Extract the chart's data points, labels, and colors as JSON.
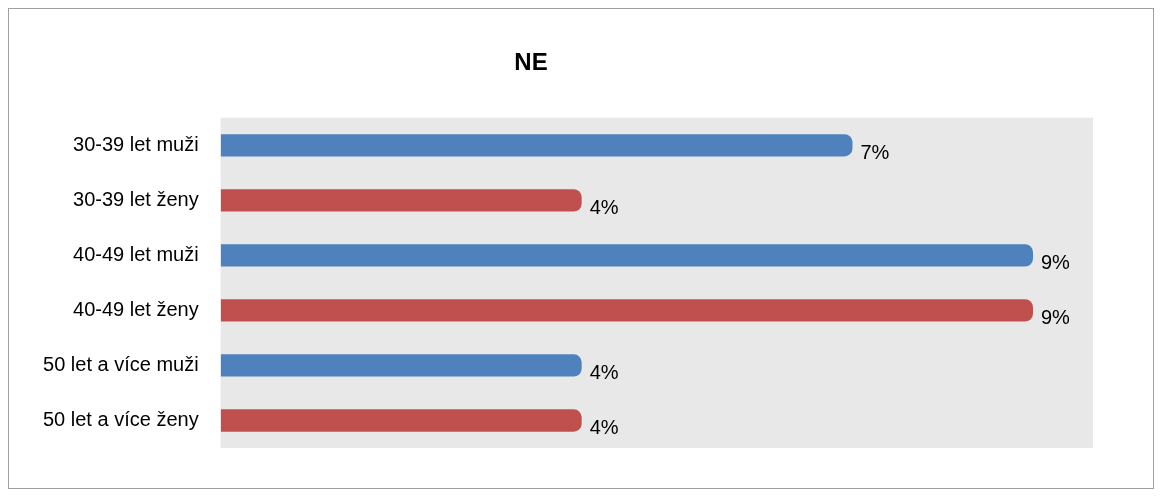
{
  "chart_data": {
    "type": "bar",
    "title": "NE",
    "orientation": "horizontal",
    "categories": [
      "30-39 let muži",
      "30-39 let ženy",
      "40-49 let muži",
      "40-49 let ženy",
      "50 let a více muži",
      "50 let a více ženy"
    ],
    "values": [
      7,
      4,
      9,
      9,
      4,
      4
    ],
    "colors": [
      "#4f81bd",
      "#c0504d",
      "#4f81bd",
      "#c0504d",
      "#4f81bd",
      "#c0504d"
    ],
    "value_labels": [
      "7%",
      "4%",
      "9%",
      "9%",
      "4%",
      "4%"
    ],
    "legend": false
  }
}
